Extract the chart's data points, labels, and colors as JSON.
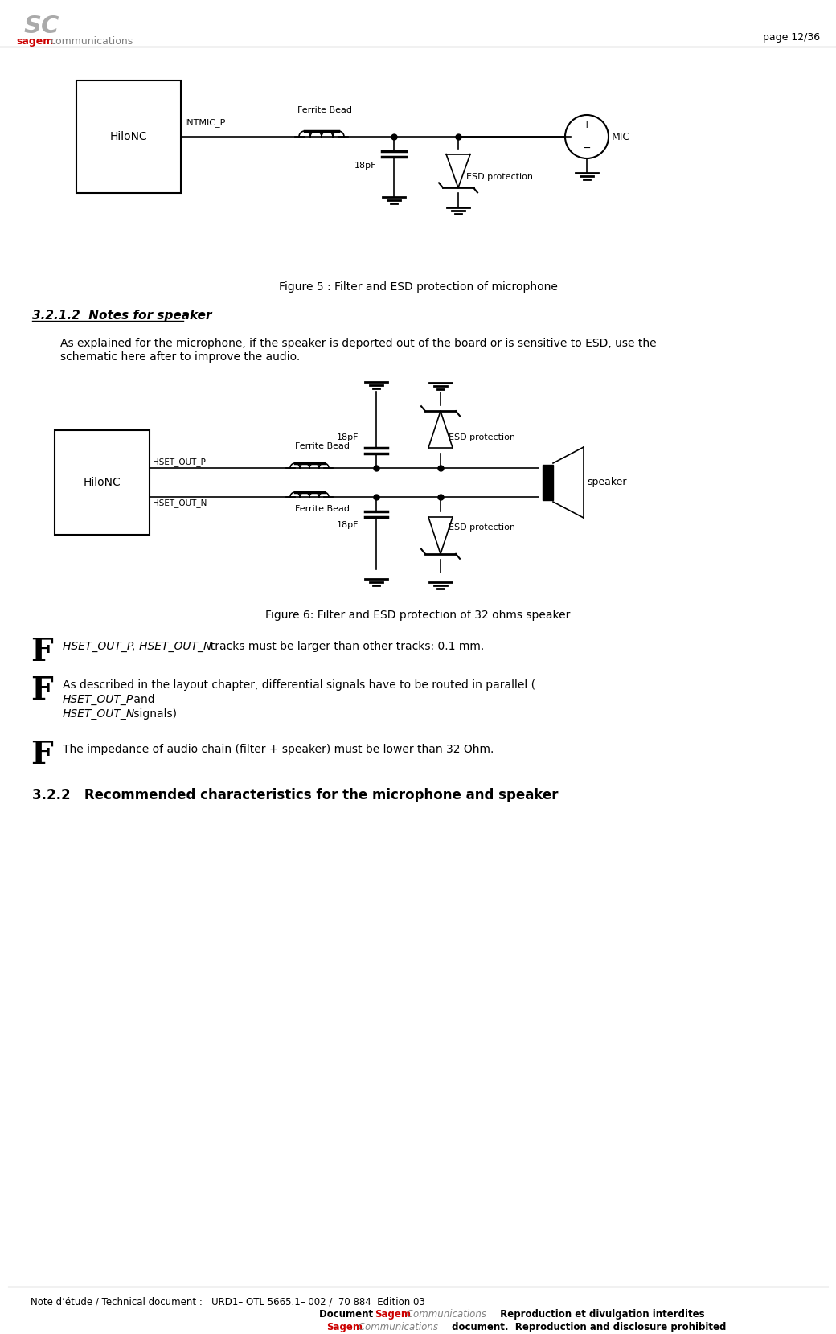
{
  "page_number": "page 12/36",
  "header_sagem_color": "#cc0000",
  "footer_line1": "Note d’étude / Technical document :   URD1– OTL 5665.1– 002 /  70 884  Edition 03",
  "fig5_caption": "Figure 5 : Filter and ESD protection of microphone",
  "fig6_caption": "Figure 6: Filter and ESD protection of 32 ohms speaker",
  "section_title": "3.2.1.2  Notes for speaker",
  "section_321_text1": "As explained for the microphone, if the speaker is deported out of the board or is sensitive to ESD, use the",
  "section_321_text2": "schematic here after to improve the audio.",
  "bullet3": "The impedance of audio chain (filter + speaker) must be lower than 32 Ohm.",
  "section_322_title": "3.2.2   Recommended characteristics for the microphone and speaker",
  "background_color": "#ffffff",
  "text_color": "#000000"
}
